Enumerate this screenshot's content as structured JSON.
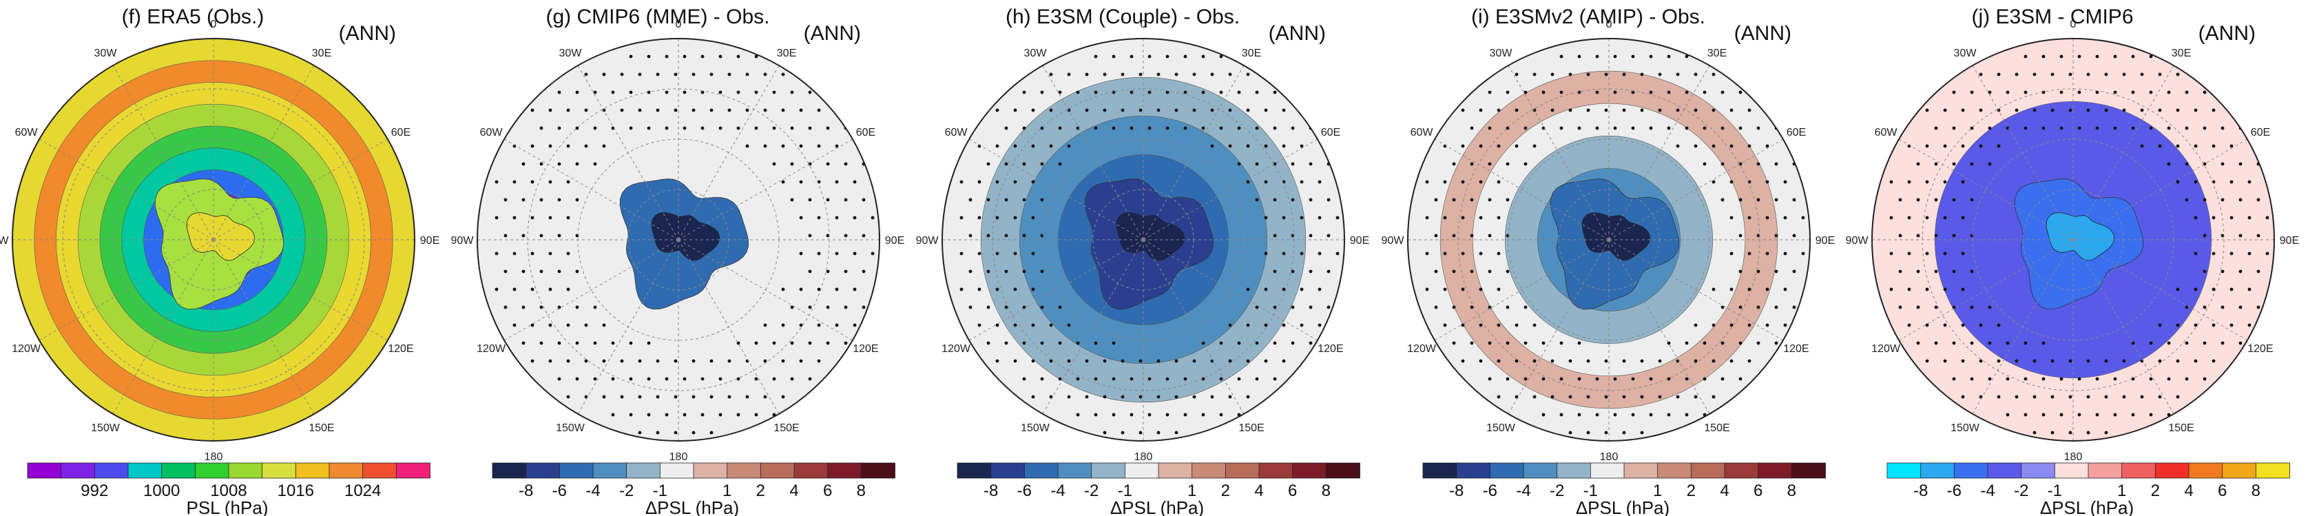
{
  "lon_labels": [
    "0",
    "30E",
    "60E",
    "90E",
    "120E",
    "150E",
    "180",
    "150W",
    "120W",
    "90W",
    "60W",
    "30W"
  ],
  "panels": [
    {
      "id": "f",
      "title": "(f) ERA5 (Obs.)",
      "season": "(ANN)",
      "colorbar_title": "PSL (hPa)",
      "colorbar_colors": [
        "#9400d3",
        "#7e22e6",
        "#4b4bf0",
        "#00c8c8",
        "#00c060",
        "#30d030",
        "#98d830",
        "#d8e040",
        "#f0c020",
        "#f08a30",
        "#f05030",
        "#f0207a"
      ],
      "colorbar_tick_labels": [
        "992",
        "1000",
        "1008",
        "1016",
        "1024"
      ],
      "rings": [
        "#e6d830",
        "#f08a2a",
        "#e8d830",
        "#a8d838",
        "#38c848",
        "#00c8a0",
        "#2c6cf0",
        "#8c18d8"
      ],
      "core_color": "#a8e040",
      "core_inner": "#e6d830",
      "stippled": false
    },
    {
      "id": "g",
      "title": "(g) CMIP6 (MME) - Obs.",
      "season": "(ANN)",
      "colorbar_title": "ΔPSL (hPa)",
      "colorbar_colors": [
        "#1a2550",
        "#2a3f8f",
        "#2f6bb0",
        "#4f8fc0",
        "#93b4c8",
        "#eeeeee",
        "#ddb1a4",
        "#c98a76",
        "#b86c5a",
        "#9a3b3a",
        "#7d1a2a",
        "#4a0f1a"
      ],
      "colorbar_tick_labels": [
        "-8",
        "-6",
        "-4",
        "-2",
        "-1",
        "1",
        "2",
        "4",
        "6",
        "8"
      ],
      "rings": [
        "#eeeeee"
      ],
      "core_color": "#2f6bb0",
      "core_inner": "#1a2550",
      "stippled": true
    },
    {
      "id": "h",
      "title": "(h) E3SM (Couple) - Obs.",
      "season": "(ANN)",
      "colorbar_title": "ΔPSL (hPa)",
      "colorbar_colors": [
        "#1a2550",
        "#2a3f8f",
        "#2f6bb0",
        "#4f8fc0",
        "#93b4c8",
        "#eeeeee",
        "#ddb1a4",
        "#c98a76",
        "#b86c5a",
        "#9a3b3a",
        "#7d1a2a",
        "#4a0f1a"
      ],
      "colorbar_tick_labels": [
        "-8",
        "-6",
        "-4",
        "-2",
        "-1",
        "1",
        "2",
        "4",
        "6",
        "8"
      ],
      "rings": [
        "#eeeeee",
        "#93b4c8",
        "#4f8fc0",
        "#2f6bb0"
      ],
      "core_color": "#2a3f8f",
      "core_inner": "#1a2550",
      "stippled": true
    },
    {
      "id": "i",
      "title": "(i) E3SMv2 (AMIP) - Obs.",
      "season": "(ANN)",
      "colorbar_title": "ΔPSL (hPa)",
      "colorbar_colors": [
        "#1a2550",
        "#2a3f8f",
        "#2f6bb0",
        "#4f8fc0",
        "#93b4c8",
        "#eeeeee",
        "#ddb1a4",
        "#c98a76",
        "#b86c5a",
        "#9a3b3a",
        "#7d1a2a",
        "#4a0f1a"
      ],
      "colorbar_tick_labels": [
        "-8",
        "-6",
        "-4",
        "-2",
        "-1",
        "1",
        "2",
        "4",
        "6",
        "8"
      ],
      "rings": [
        "#eeeeee",
        "#ddb1a4",
        "#eeeeee",
        "#93b4c8",
        "#4f8fc0"
      ],
      "core_color": "#2f6bb0",
      "core_inner": "#1a2550",
      "stippled": true
    },
    {
      "id": "j",
      "title": "(j) E3SM - CMIP6",
      "season": "(ANN)",
      "colorbar_title": "ΔPSL (hPa)",
      "colorbar_colors": [
        "#00e5ff",
        "#2aa8f0",
        "#3a70f0",
        "#5a5ae8",
        "#8a8af2",
        "#fbe0de",
        "#f4a0a0",
        "#f06060",
        "#f03028",
        "#f07a20",
        "#f0a818",
        "#f0e020"
      ],
      "colorbar_tick_labels": [
        "-8",
        "-6",
        "-4",
        "-2",
        "-1",
        "1",
        "2",
        "4",
        "6",
        "8"
      ],
      "rings": [
        "#fbe0de",
        "#5a5ae8"
      ],
      "core_color": "#3a70f0",
      "core_inner": "#2aa8f0",
      "stippled": true
    }
  ]
}
